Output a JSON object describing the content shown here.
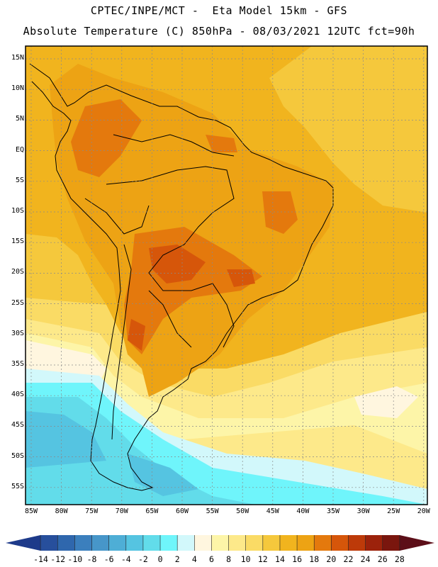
{
  "header": {
    "line1": "CPTEC/INPE/MCT -  Eta Model 15km - GFS",
    "line2": "Absolute Temperature (C) 850hPa - 08/03/2021 12UTC fct=90h"
  },
  "map": {
    "lat_labels": [
      "15N",
      "10N",
      "5N",
      "EQ",
      "5S",
      "10S",
      "15S",
      "20S",
      "25S",
      "30S",
      "35S",
      "40S",
      "45S",
      "50S",
      "55S"
    ],
    "lon_labels": [
      "85W",
      "80W",
      "75W",
      "70W",
      "65W",
      "60W",
      "55W",
      "50W",
      "45W",
      "40W",
      "35W",
      "30W",
      "25W",
      "20W"
    ]
  },
  "colorbar": {
    "labels": [
      "-14",
      "-12",
      "-10",
      "-8",
      "-6",
      "-4",
      "-2",
      "0",
      "2",
      "4",
      "6",
      "8",
      "10",
      "12",
      "14",
      "16",
      "18",
      "20",
      "22",
      "24",
      "26",
      "28"
    ],
    "colors": [
      "#1d3a8a",
      "#274f9c",
      "#2f67ad",
      "#3b7fbd",
      "#4796c9",
      "#4eaed6",
      "#55c4e1",
      "#62dcea",
      "#6ff5fb",
      "#d2f8fb",
      "#fff6df",
      "#fdf5a8",
      "#fde98a",
      "#fadb65",
      "#f5c83c",
      "#f1b41e",
      "#eda314",
      "#e4790d",
      "#d6560a",
      "#bd3a09",
      "#9c220b",
      "#7a160e",
      "#5c0e18"
    ]
  }
}
